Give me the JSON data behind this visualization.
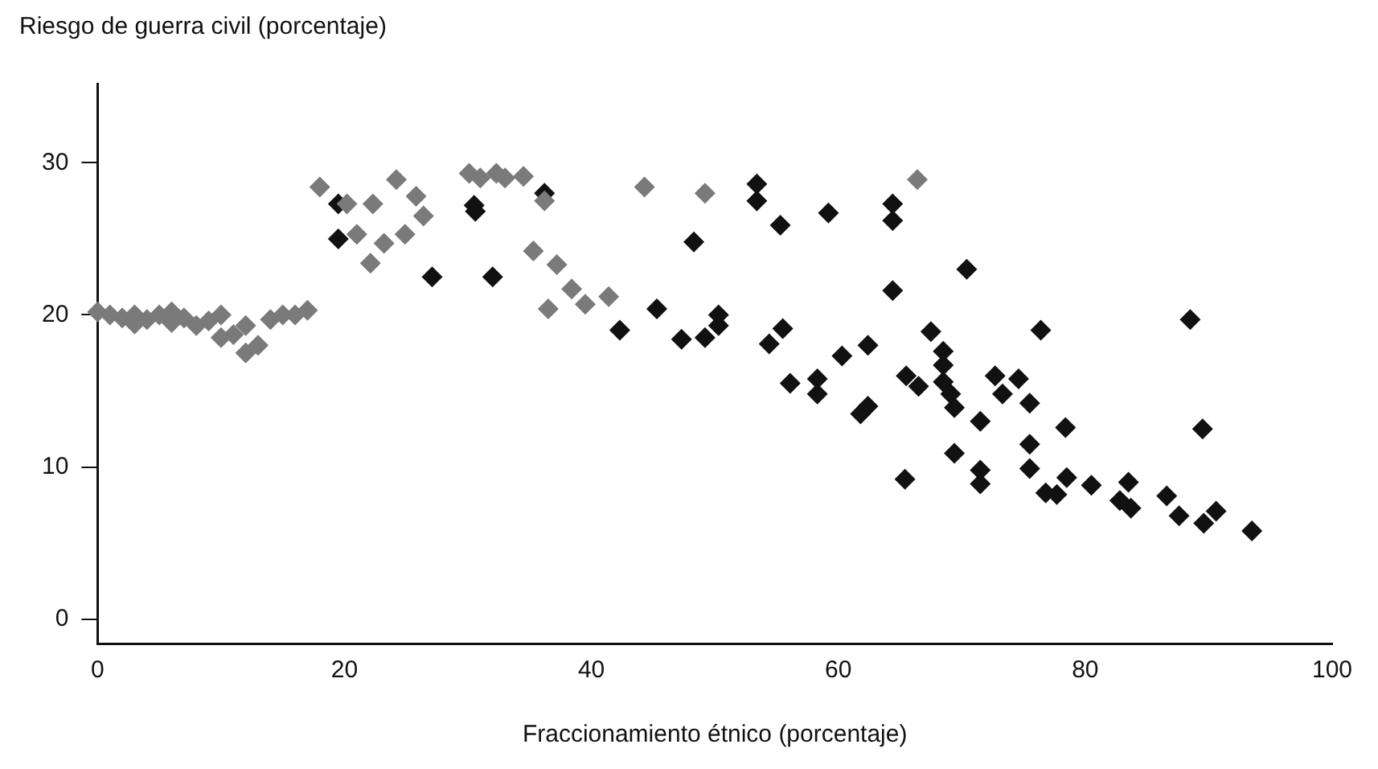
{
  "chart_data": {
    "type": "scatter",
    "xlabel": "Fraccionamiento étnico (porcentaje)",
    "ylabel": "Riesgo de guerra civil (porcentaje)",
    "xlim": [
      0,
      100
    ],
    "xticks": [
      0,
      20,
      40,
      60,
      80,
      100
    ],
    "ylim": [
      -1.6,
      35.2
    ],
    "yticks": [
      0,
      10,
      20,
      30
    ],
    "grid": false,
    "legend": false,
    "marker": "diamond",
    "tick_labels": "xy",
    "series": [
      {
        "color": "#7a7a7a",
        "x": [
          0,
          1,
          2,
          3,
          3,
          4,
          5,
          6,
          6,
          7,
          8,
          9,
          10,
          10,
          11,
          12,
          12,
          13,
          14,
          15,
          16,
          17,
          18,
          24.2,
          20.2,
          22.3,
          21,
          23.2,
          22.1,
          24.9,
          25.8,
          26.4,
          30.1,
          31,
          32.3,
          33,
          34.5,
          36.2,
          35.3,
          37.2,
          38.4,
          39.5,
          41.4,
          36.5,
          44.3,
          49.2,
          66.4
        ],
        "values": [
          20.2,
          20,
          19.8,
          20,
          19.4,
          19.7,
          20,
          19.5,
          20.2,
          19.8,
          19.3,
          19.6,
          20,
          18.5,
          18.7,
          19.3,
          17.5,
          18,
          19.7,
          20,
          20,
          20.3,
          28.4,
          28.9,
          27.3,
          27.3,
          25.3,
          24.7,
          23.4,
          25.3,
          27.8,
          26.5,
          29.3,
          29,
          29.3,
          29,
          29.1,
          27.5,
          24.2,
          23.3,
          21.7,
          20.7,
          21.2,
          20.4,
          28.4,
          28,
          28.9
        ]
      },
      {
        "color": "#111111",
        "x": [
          19.5,
          19.5,
          27.1,
          32,
          30.6,
          30.5,
          36.2,
          53.4,
          53.4,
          55.3,
          59.2,
          64.4,
          64.4,
          48.3,
          70.4,
          64.4,
          42.3,
          45.3,
          47.3,
          49.2,
          50.3,
          50.3,
          54.4,
          55.5,
          60.3,
          62.4,
          67.5,
          68.5,
          68.5,
          88.5,
          76.4,
          56.1,
          58.3,
          58.3,
          61.8,
          62.4,
          65.5,
          66.5,
          68.5,
          69.1,
          69.4,
          72.7,
          74.6,
          73.3,
          75.5,
          71.5,
          78.4,
          89.5,
          75.5,
          69.4,
          65.4,
          71.5,
          71.5,
          75.5,
          78.5,
          76.8,
          77.7,
          80.5,
          83.5,
          82.8,
          83.7,
          86.6,
          87.6,
          89.6,
          90.6,
          93.5
        ],
        "values": [
          27.3,
          25,
          22.5,
          22.5,
          26.8,
          27.2,
          28,
          28.6,
          27.5,
          25.9,
          26.7,
          27.3,
          26.2,
          24.8,
          23,
          21.6,
          19,
          20.4,
          18.4,
          18.5,
          20,
          19.3,
          18.1,
          19.1,
          17.3,
          18,
          18.9,
          17.6,
          16.7,
          19.7,
          19,
          15.5,
          15.8,
          14.8,
          13.5,
          14,
          16,
          15.3,
          15.6,
          14.8,
          13.9,
          16,
          15.8,
          14.8,
          14.2,
          13,
          12.6,
          12.5,
          11.5,
          10.9,
          9.2,
          9.8,
          8.9,
          9.9,
          9.3,
          8.3,
          8.2,
          8.8,
          9,
          7.8,
          7.3,
          8.1,
          6.8,
          6.3,
          7.1,
          5.8
        ]
      }
    ]
  }
}
